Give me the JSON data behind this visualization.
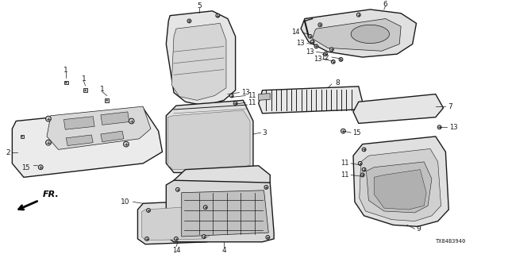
{
  "bg_color": "#ffffff",
  "diagram_code": "TX84B3940",
  "dark": "#1a1a1a",
  "gray": "#666666",
  "light_gray": "#e0e0e0",
  "mid_gray": "#c8c8c8"
}
